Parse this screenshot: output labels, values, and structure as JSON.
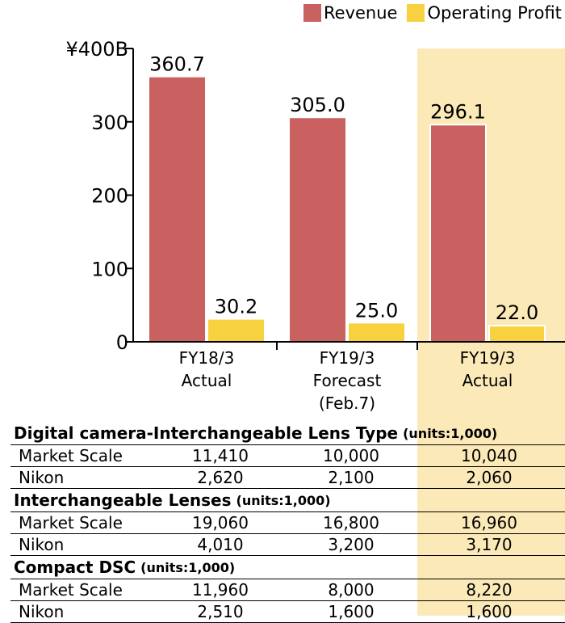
{
  "colors": {
    "revenue": "#c96160",
    "operating_profit": "#f7d13f",
    "highlight": "#fbe9b7"
  },
  "chart_data": {
    "type": "bar",
    "categories": [
      [
        "FY18/3",
        "Actual"
      ],
      [
        "FY19/3",
        "Forecast",
        "(Feb.7)"
      ],
      [
        "FY19/3",
        "Actual"
      ]
    ],
    "series": [
      {
        "name": "Revenue",
        "values": [
          360.7,
          305.0,
          296.1
        ],
        "labels": [
          "360.7",
          "305.0",
          "296.1"
        ]
      },
      {
        "name": "Operating Profit",
        "values": [
          30.2,
          25.0,
          22.0
        ],
        "labels": [
          "30.2",
          "25.0",
          "22.0"
        ]
      }
    ],
    "yticks": [
      "0",
      "100",
      "200",
      "300",
      "¥400B"
    ],
    "ylim": [
      0,
      400
    ],
    "highlighted_category": 2,
    "legend_position": "top-right"
  },
  "table": {
    "sections": [
      {
        "title": "Digital camera-Interchangeable Lens Type",
        "units": "(units:1,000)",
        "rows": [
          {
            "label": "Market Scale",
            "values": [
              "11,410",
              "10,000",
              "10,040"
            ]
          },
          {
            "label": "Nikon",
            "values": [
              "2,620",
              "2,100",
              "2,060"
            ]
          }
        ]
      },
      {
        "title": "Interchangeable Lenses",
        "units": "(units:1,000)",
        "rows": [
          {
            "label": "Market Scale",
            "values": [
              "19,060",
              "16,800",
              "16,960"
            ]
          },
          {
            "label": "Nikon",
            "values": [
              "4,010",
              "3,200",
              "3,170"
            ]
          }
        ]
      },
      {
        "title": "Compact DSC",
        "units": "(units:1,000)",
        "rows": [
          {
            "label": "Market Scale",
            "values": [
              "11,960",
              "8,000",
              "8,220"
            ]
          },
          {
            "label": "Nikon",
            "values": [
              "2,510",
              "1,600",
              "1,600"
            ]
          }
        ]
      }
    ]
  }
}
